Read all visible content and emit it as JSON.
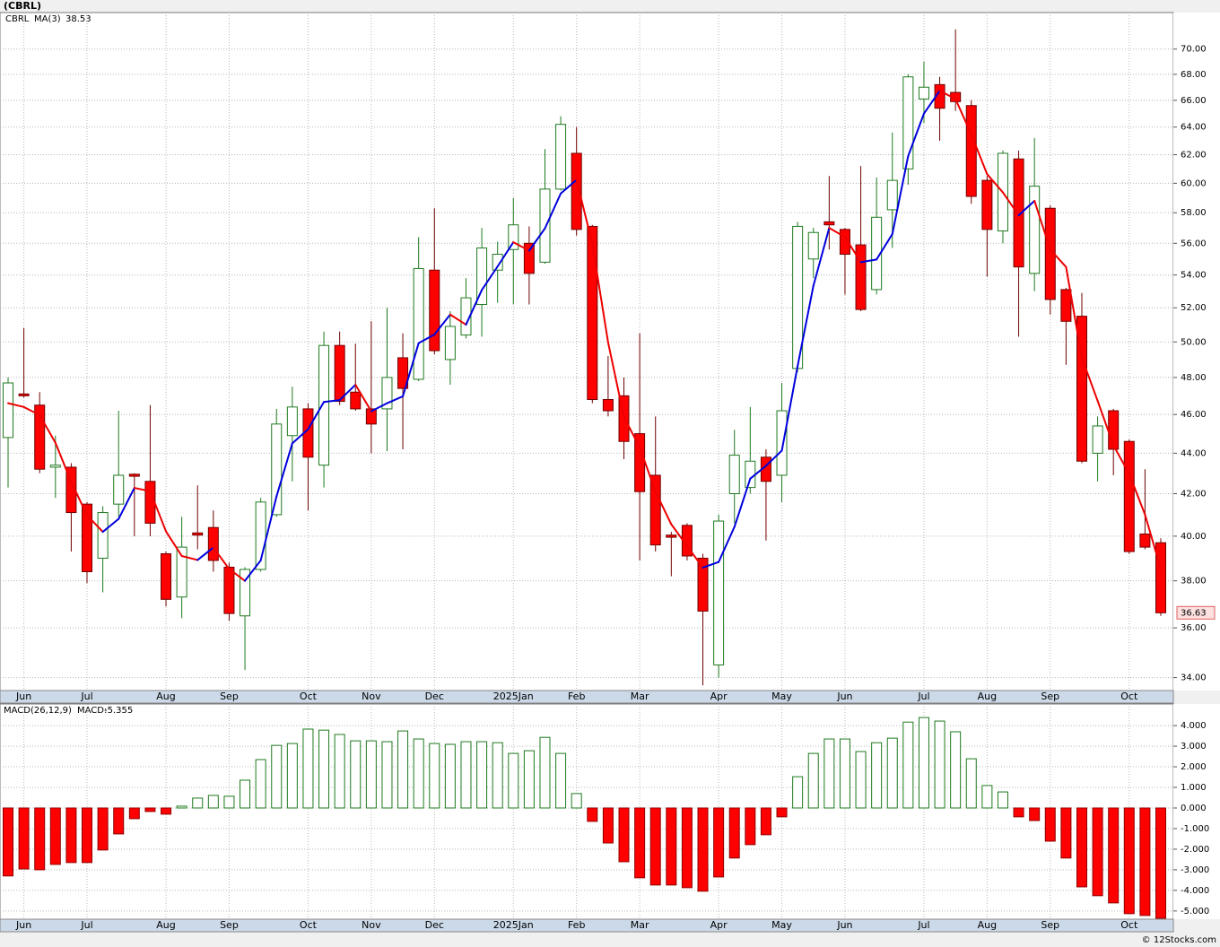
{
  "title": "(CBRL)",
  "footer": "© 12Stocks.com",
  "chart_data": [
    {
      "type": "candlestick",
      "name": "CBRL",
      "log_scale": true,
      "grid": true,
      "up_color": "#1f7a1f",
      "down_color": "#ff0000",
      "categories": [
        null,
        "Jun",
        null,
        null,
        null,
        "Jul",
        null,
        null,
        null,
        null,
        "Aug",
        null,
        null,
        null,
        "Sep",
        null,
        null,
        null,
        null,
        "Oct",
        null,
        null,
        null,
        "Nov",
        null,
        null,
        null,
        "Dec",
        null,
        null,
        null,
        null,
        "2025Jan",
        null,
        null,
        null,
        "Feb",
        null,
        null,
        null,
        "Mar",
        null,
        null,
        null,
        null,
        "Apr",
        null,
        null,
        null,
        "May",
        null,
        null,
        null,
        "Jun",
        null,
        null,
        null,
        null,
        "Jul",
        null,
        null,
        null,
        "Aug",
        null,
        null,
        null,
        "Sep",
        null,
        null,
        null,
        null,
        "Oct",
        null,
        null
      ],
      "open": [
        44.8,
        47.1,
        46.5,
        43.3,
        43.3,
        41.5,
        39.0,
        41.5,
        42.95,
        42.6,
        39.2,
        37.3,
        40.15,
        40.4,
        38.6,
        36.5,
        38.5,
        41.0,
        44.9,
        46.3,
        43.4,
        49.8,
        47.2,
        46.3,
        46.3,
        49.1,
        47.9,
        54.3,
        49.0,
        50.4,
        52.2,
        54.3,
        55.6,
        56.0,
        54.8,
        59.6,
        62.1,
        57.1,
        46.8,
        47.0,
        45.0,
        42.9,
        40.05,
        40.5,
        39.0,
        34.5,
        42.0,
        42.3,
        43.8,
        42.9,
        48.5,
        55.0,
        57.4,
        56.9,
        55.9,
        53.1,
        58.2,
        61.0,
        66.1,
        67.2,
        66.6,
        65.6,
        60.2,
        56.8,
        61.7,
        54.1,
        58.3,
        53.1,
        51.5,
        44.0,
        46.2,
        44.6,
        40.1,
        39.7
      ],
      "high": [
        48.0,
        50.8,
        47.2,
        44.9,
        43.5,
        41.6,
        41.4,
        46.2,
        43.0,
        46.5,
        39.3,
        40.9,
        42.4,
        41.2,
        38.8,
        38.6,
        41.8,
        46.3,
        47.5,
        46.6,
        50.6,
        50.6,
        49.9,
        51.2,
        52.0,
        50.5,
        56.4,
        58.3,
        51.8,
        53.8,
        57.0,
        56.1,
        59.0,
        57.1,
        62.4,
        64.8,
        64.0,
        57.2,
        49.2,
        48.0,
        50.5,
        45.9,
        40.2,
        40.6,
        39.2,
        41.0,
        45.2,
        46.4,
        44.2,
        47.7,
        57.4,
        57.0,
        60.5,
        57.0,
        61.2,
        60.4,
        63.6,
        68.0,
        69.0,
        67.8,
        71.6,
        66.0,
        60.5,
        62.3,
        62.3,
        63.2,
        58.5,
        53.2,
        52.9,
        45.9,
        46.3,
        44.7,
        43.2,
        39.9
      ],
      "low": [
        42.3,
        46.9,
        43.0,
        41.8,
        39.3,
        37.9,
        37.5,
        40.9,
        40.0,
        40.0,
        36.9,
        36.4,
        39.4,
        38.4,
        36.3,
        34.3,
        38.4,
        40.9,
        42.6,
        41.2,
        42.3,
        46.5,
        46.2,
        44.0,
        44.1,
        44.2,
        47.8,
        49.3,
        47.6,
        50.2,
        50.3,
        52.3,
        52.2,
        52.2,
        54.7,
        59.5,
        56.5,
        46.6,
        45.9,
        43.7,
        38.9,
        39.3,
        38.2,
        38.9,
        33.7,
        34.0,
        40.6,
        42.0,
        39.8,
        41.6,
        48.3,
        53.8,
        55.6,
        52.8,
        51.8,
        52.8,
        55.7,
        59.9,
        64.3,
        63.0,
        65.2,
        58.6,
        53.9,
        56.0,
        50.3,
        53.0,
        51.6,
        48.7,
        43.5,
        42.6,
        42.9,
        39.2,
        39.4,
        36.5
      ],
      "close": [
        47.7,
        47.0,
        43.2,
        43.4,
        41.1,
        38.4,
        41.1,
        42.9,
        42.85,
        40.6,
        37.2,
        39.5,
        40.05,
        38.9,
        36.6,
        38.5,
        41.6,
        45.5,
        46.4,
        43.8,
        49.8,
        46.7,
        46.3,
        45.5,
        48.0,
        47.4,
        54.4,
        49.5,
        50.9,
        52.6,
        55.7,
        55.3,
        57.2,
        54.1,
        59.6,
        64.2,
        56.9,
        46.8,
        46.2,
        44.6,
        42.1,
        39.6,
        39.95,
        39.1,
        36.7,
        40.7,
        43.9,
        43.6,
        42.6,
        46.2,
        57.1,
        56.7,
        57.2,
        55.3,
        51.9,
        57.7,
        60.2,
        67.8,
        67.0,
        65.4,
        65.9,
        59.1,
        56.9,
        62.1,
        54.5,
        59.8,
        52.5,
        51.2,
        43.6,
        45.4,
        44.2,
        39.3,
        39.5,
        36.63
      ],
      "ma": {
        "name": "MA(3)",
        "up_color": "#0000dd",
        "down_color": "#ee0000",
        "values": [
          46.6,
          46.4,
          45.97,
          44.53,
          42.57,
          40.97,
          40.2,
          40.8,
          42.28,
          42.12,
          40.22,
          39.1,
          38.92,
          39.48,
          38.52,
          38.0,
          38.9,
          41.87,
          44.5,
          45.23,
          46.67,
          46.77,
          47.6,
          46.17,
          46.6,
          46.97,
          49.93,
          50.43,
          51.6,
          51.0,
          53.07,
          54.53,
          56.07,
          55.53,
          56.97,
          59.3,
          60.23,
          55.97,
          49.97,
          45.87,
          44.3,
          42.1,
          40.55,
          39.55,
          38.58,
          38.83,
          40.43,
          42.73,
          43.37,
          44.13,
          48.63,
          53.33,
          57.0,
          56.4,
          54.8,
          54.97,
          56.6,
          61.9,
          65.0,
          66.73,
          66.1,
          63.47,
          60.63,
          59.37,
          57.83,
          58.8,
          55.6,
          54.5,
          49.1,
          46.73,
          44.4,
          42.97,
          41.0,
          38.53
        ]
      },
      "ylim": [
        33.5,
        73
      ],
      "yticks": [
        {
          "value": 34,
          "label": "34.00"
        },
        {
          "value": 36,
          "label": "36.00"
        },
        {
          "value": 38,
          "label": "38.00"
        },
        {
          "value": 40,
          "label": "40.00"
        },
        {
          "value": 42,
          "label": "42.00"
        },
        {
          "value": 44,
          "label": "44.00"
        },
        {
          "value": 46,
          "label": "46.00"
        },
        {
          "value": 48,
          "label": "48.00"
        },
        {
          "value": 50,
          "label": "50.00"
        },
        {
          "value": 52,
          "label": "52.00"
        },
        {
          "value": 54,
          "label": "54.00"
        },
        {
          "value": 56,
          "label": "56.00"
        },
        {
          "value": 58,
          "label": "58.00"
        },
        {
          "value": 60,
          "label": "60.00"
        },
        {
          "value": 62,
          "label": "62.00"
        },
        {
          "value": 64,
          "label": "64.00"
        },
        {
          "value": 66,
          "label": "66.00"
        },
        {
          "value": 68,
          "label": "68.00"
        },
        {
          "value": 70,
          "label": "70.00"
        }
      ]
    },
    {
      "type": "bar",
      "name": "MACD(26,12,9)",
      "value_name": "MACD:",
      "grid": true,
      "up_color": "#1f7a1f",
      "down_color": "#ff0000",
      "categories": [
        null,
        "Jun",
        null,
        null,
        null,
        "Jul",
        null,
        null,
        null,
        null,
        "Aug",
        null,
        null,
        null,
        "Sep",
        null,
        null,
        null,
        null,
        "Oct",
        null,
        null,
        null,
        "Nov",
        null,
        null,
        null,
        "Dec",
        null,
        null,
        null,
        null,
        "2025Jan",
        null,
        null,
        null,
        "Feb",
        null,
        null,
        null,
        "Mar",
        null,
        null,
        null,
        null,
        "Apr",
        null,
        null,
        null,
        "May",
        null,
        null,
        null,
        "Jun",
        null,
        null,
        null,
        null,
        "Jul",
        null,
        null,
        null,
        "Aug",
        null,
        null,
        null,
        "Sep",
        null,
        null,
        null,
        null,
        "Oct",
        null,
        null
      ],
      "values": [
        -3.3,
        -2.96,
        -3.0,
        -2.74,
        -2.65,
        -2.65,
        -2.04,
        -1.26,
        -0.52,
        -0.17,
        -0.3,
        0.09,
        0.48,
        0.61,
        0.57,
        1.35,
        2.35,
        3.04,
        3.13,
        3.83,
        3.78,
        3.57,
        3.26,
        3.26,
        3.22,
        3.74,
        3.35,
        3.13,
        3.09,
        3.22,
        3.22,
        3.17,
        2.65,
        2.78,
        3.43,
        2.65,
        0.7,
        -0.65,
        -1.7,
        -2.61,
        -3.39,
        -3.74,
        -3.74,
        -3.87,
        -4.04,
        -3.35,
        -2.43,
        -1.78,
        -1.3,
        -0.43,
        1.52,
        2.65,
        3.35,
        3.35,
        2.74,
        3.17,
        3.39,
        4.17,
        4.39,
        4.22,
        3.7,
        2.39,
        1.09,
        0.78,
        -0.43,
        -0.61,
        -1.61,
        -2.43,
        -3.83,
        -4.26,
        -4.61,
        -5.13,
        -5.22,
        -5.355
      ],
      "ylim": [
        -5.4,
        5.05
      ],
      "yticks": [
        {
          "value": -5,
          "label": "-5.000"
        },
        {
          "value": -4,
          "label": "-4.000"
        },
        {
          "value": -3,
          "label": "-3.000"
        },
        {
          "value": -2,
          "label": "-2.000"
        },
        {
          "value": -1,
          "label": "-1.000"
        },
        {
          "value": 0,
          "label": "0.000"
        },
        {
          "value": 1,
          "label": "1.000"
        },
        {
          "value": 2,
          "label": "2.000"
        },
        {
          "value": 3,
          "label": "3.000"
        },
        {
          "value": 4,
          "label": "4.000"
        }
      ]
    }
  ]
}
